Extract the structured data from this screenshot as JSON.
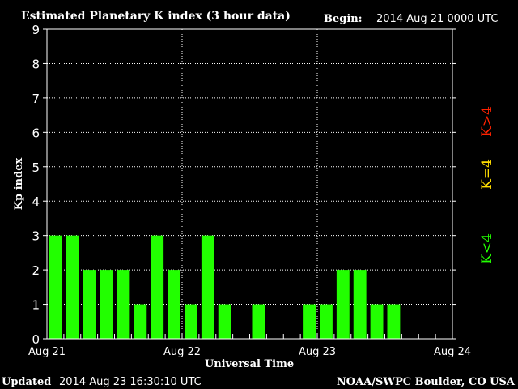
{
  "header": {
    "title": "Estimated Planetary K index (3 hour data)",
    "begin_label": "Begin:",
    "begin_value": "2014 Aug 21 0000 UTC"
  },
  "footer": {
    "updated_label": "Updated",
    "updated_value": "2014 Aug 23 16:30:10 UTC",
    "credit": "NOAA/SWPC Boulder, CO USA"
  },
  "colors": {
    "background": "#000000",
    "bar_low": "#22ff00",
    "bar_mid": "#ffdd00",
    "bar_high": "#ff2200",
    "axis": "#ffffff"
  },
  "legend": {
    "low": "K<4",
    "mid": "K=4",
    "high": "K>4"
  },
  "chart_data": {
    "type": "bar",
    "title": "Estimated Planetary K index (3 hour data)",
    "xlabel": "Universal Time",
    "ylabel": "Kp index",
    "ylim": [
      0,
      9
    ],
    "yticks": [
      "0",
      "1",
      "2",
      "3",
      "4",
      "5",
      "6",
      "7",
      "8",
      "9"
    ],
    "xtick_labels": [
      "Aug 21",
      "Aug 22",
      "Aug 23",
      "Aug 24"
    ],
    "slot_hours": 3,
    "total_slots": 24,
    "values": [
      3,
      3,
      2,
      2,
      2,
      1,
      3,
      2,
      1,
      3,
      1,
      null,
      1,
      null,
      null,
      1,
      1,
      2,
      2,
      1,
      1,
      null,
      null,
      null
    ],
    "grid": true,
    "legend_placement": "right"
  }
}
